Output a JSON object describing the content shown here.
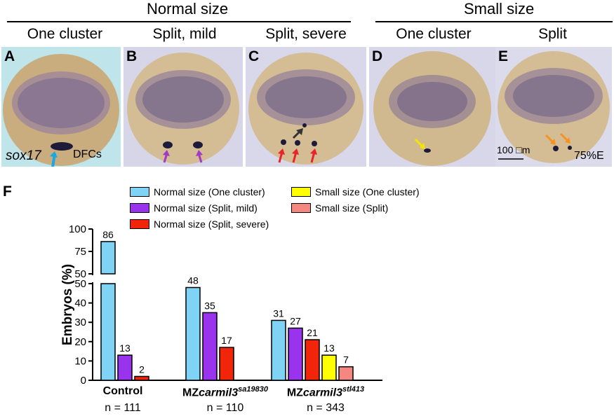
{
  "header": {
    "normal_size": "Normal size",
    "small_size": "Small size",
    "sub": [
      "One cluster",
      "Split, mild",
      "Split, severe",
      "One cluster",
      "Split"
    ]
  },
  "panels": [
    {
      "label": "A",
      "gene": "sox17",
      "annotation": "DFCs",
      "arrow_color": "#19a8e0"
    },
    {
      "label": "B",
      "arrow_color": "#a23bc4"
    },
    {
      "label": "C",
      "arrow_color": "#e8232a",
      "extra_arrow_color": "#333333"
    },
    {
      "label": "D",
      "arrow_color": "#f6e500"
    },
    {
      "label": "E",
      "arrow_color": "#f59221",
      "scale_bar": "100 □m",
      "stage": "75%E"
    }
  ],
  "figure_f": {
    "label": "F",
    "legend": [
      {
        "name": "Normal size (One cluster)",
        "color": "#7fd3f4"
      },
      {
        "name": "Normal size (Split, mild)",
        "color": "#9933ee"
      },
      {
        "name": "Normal size (Split, severe)",
        "color": "#f0250a"
      },
      {
        "name": "Small size (One cluster)",
        "color": "#ffff00"
      },
      {
        "name": "Small size (Split)",
        "color": "#f48880"
      }
    ]
  },
  "chart_data": {
    "type": "bar",
    "ylabel": "Embryos (%)",
    "y_ticks_upper": [
      50,
      75,
      100
    ],
    "y_ticks_lower": [
      0,
      10,
      20,
      30,
      40,
      50
    ],
    "axis_break": [
      50,
      50
    ],
    "groups": [
      {
        "name_prefix": "Control",
        "name_italic": "",
        "superscript": "",
        "n": "n = 111",
        "values": [
          86,
          13,
          2
        ]
      },
      {
        "name_prefix": "MZ",
        "name_italic": "carmil3",
        "superscript": "sa19830",
        "n": "n = 110",
        "values": [
          48,
          35,
          17
        ]
      },
      {
        "name_prefix": "MZ",
        "name_italic": "carmil3",
        "superscript": "stl413",
        "n": "n = 343",
        "values": [
          31,
          27,
          21,
          13,
          7
        ]
      }
    ]
  }
}
